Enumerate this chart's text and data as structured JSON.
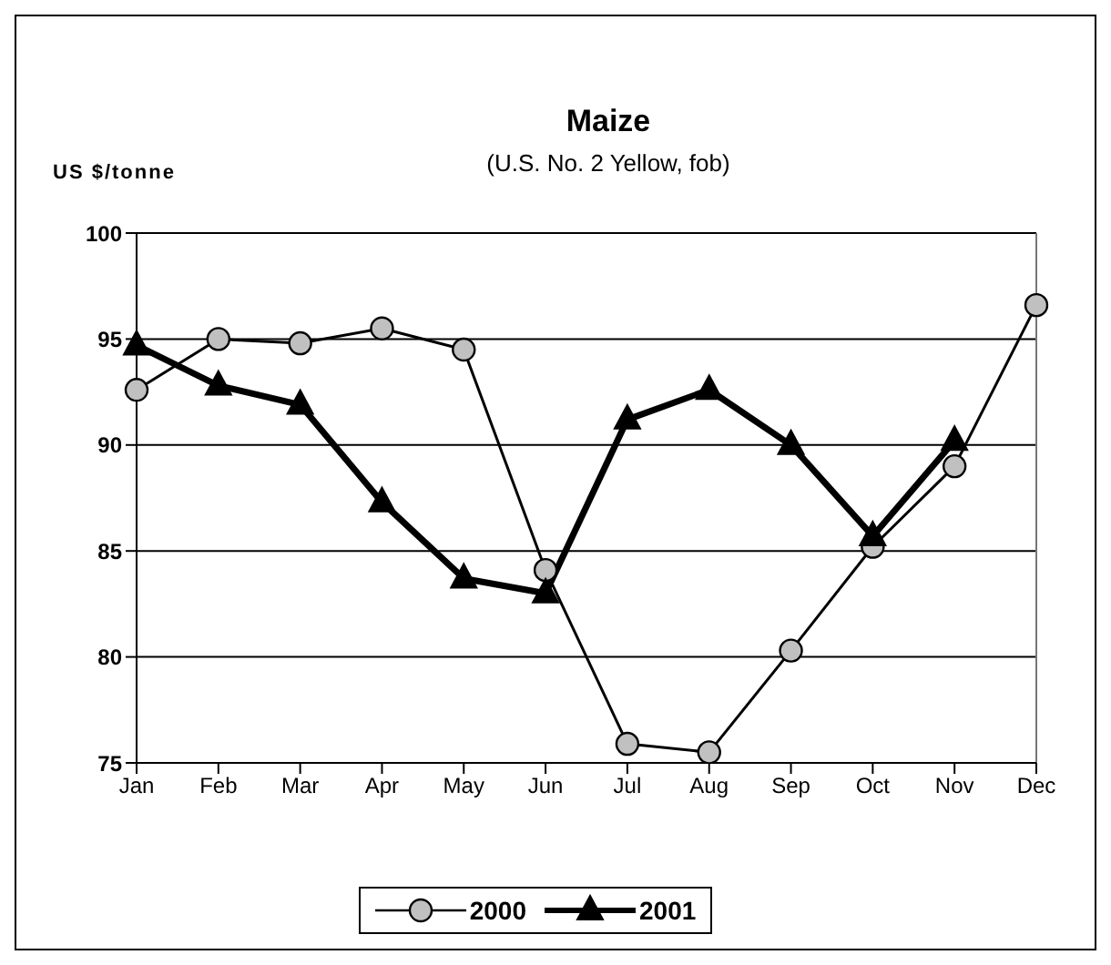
{
  "chart_data": {
    "type": "line",
    "title": "Maize",
    "subtitle": "(U.S. No. 2 Yellow, fob)",
    "ylabel": "US $/tonne",
    "categories": [
      "Jan",
      "Feb",
      "Mar",
      "Apr",
      "May",
      "Jun",
      "Jul",
      "Aug",
      "Sep",
      "Oct",
      "Nov",
      "Dec"
    ],
    "series": [
      {
        "name": "2000",
        "color": "#c0c0c0",
        "marker": "circle",
        "values": [
          92.6,
          95.0,
          94.8,
          95.5,
          94.5,
          84.1,
          75.9,
          75.5,
          80.3,
          85.2,
          89.0,
          96.6
        ]
      },
      {
        "name": "2001",
        "color": "#000000",
        "marker": "triangle",
        "values": [
          94.7,
          92.8,
          91.9,
          87.3,
          83.7,
          83.0,
          91.2,
          92.6,
          90.0,
          85.7,
          90.2,
          null
        ]
      }
    ],
    "ylim": [
      75,
      100
    ],
    "yticks": [
      75,
      80,
      85,
      90,
      95,
      100
    ],
    "grid": "y",
    "legend": "bottom"
  }
}
